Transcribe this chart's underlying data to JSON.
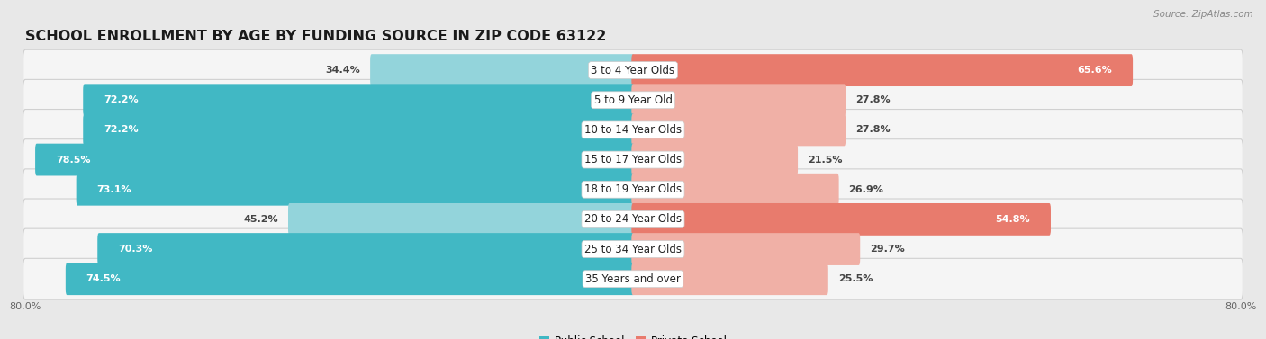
{
  "title": "SCHOOL ENROLLMENT BY AGE BY FUNDING SOURCE IN ZIP CODE 63122",
  "source": "Source: ZipAtlas.com",
  "categories": [
    "3 to 4 Year Olds",
    "5 to 9 Year Old",
    "10 to 14 Year Olds",
    "15 to 17 Year Olds",
    "18 to 19 Year Olds",
    "20 to 24 Year Olds",
    "25 to 34 Year Olds",
    "35 Years and over"
  ],
  "public_values": [
    34.4,
    72.2,
    72.2,
    78.5,
    73.1,
    45.2,
    70.3,
    74.5
  ],
  "private_values": [
    65.6,
    27.8,
    27.8,
    21.5,
    26.9,
    54.8,
    29.7,
    25.5
  ],
  "public_color_dark": "#41b8c4",
  "public_color_light": "#93d4db",
  "private_color_dark": "#e87b6d",
  "private_color_light": "#f0b0a6",
  "axis_max": 80.0,
  "background_color": "#e8e8e8",
  "row_bg_color": "#f5f5f5",
  "row_border_color": "#d0d0d0",
  "title_fontsize": 11.5,
  "label_fontsize": 8.5,
  "value_fontsize": 8.0,
  "tick_fontsize": 8.0,
  "legend_fontsize": 8.5,
  "public_dark_threshold": 55.0,
  "private_dark_threshold": 40.0
}
